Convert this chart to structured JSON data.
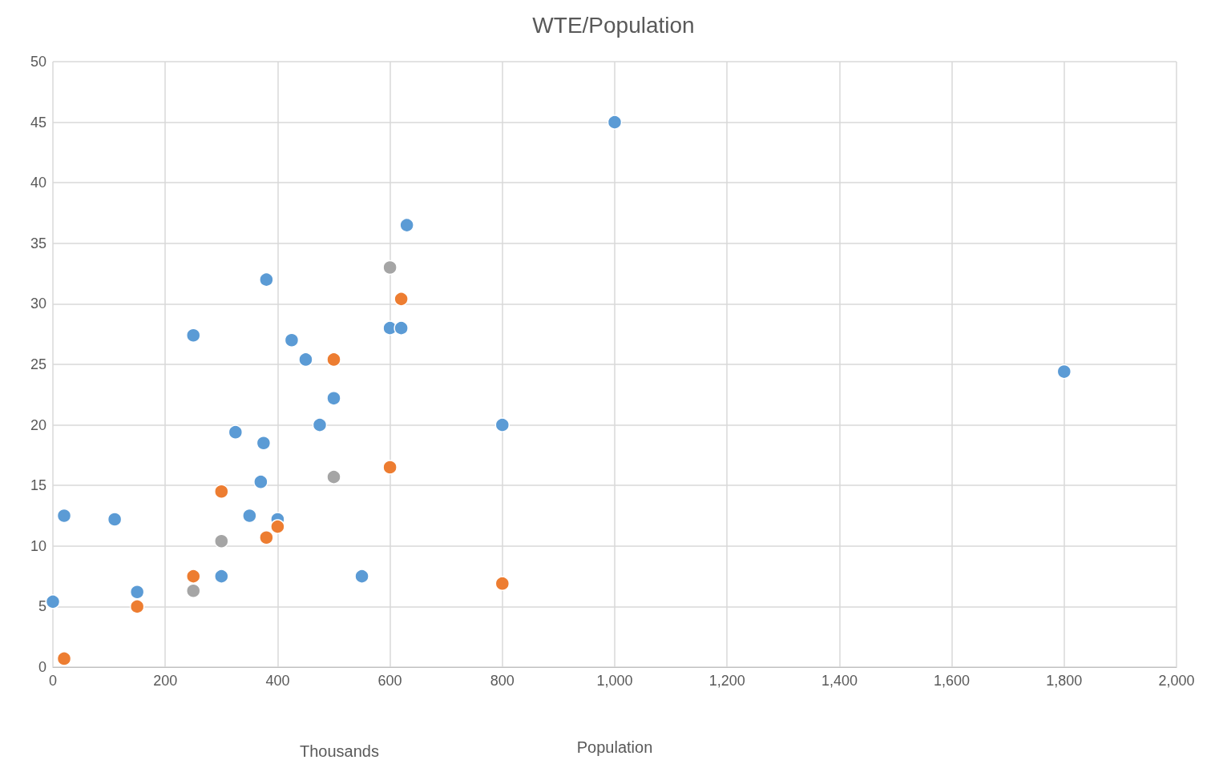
{
  "chart_data": {
    "type": "scatter",
    "title": "WTE/Population",
    "xlabel": "Population",
    "annotations": [
      "Thousands"
    ],
    "xlim": [
      0,
      2000
    ],
    "xticks": [
      0,
      200,
      400,
      600,
      800,
      {
        "value": 1000,
        "label": "1,000"
      },
      {
        "value": 1200,
        "label": "1,200"
      },
      {
        "value": 1400,
        "label": "1,400"
      },
      {
        "value": 1600,
        "label": "1,600"
      },
      {
        "value": 1800,
        "label": "1,800"
      },
      {
        "value": 2000,
        "label": "2,000"
      }
    ],
    "ylim": [
      0,
      50
    ],
    "yticks": [
      0,
      5,
      10,
      15,
      20,
      25,
      30,
      35,
      40,
      45,
      50
    ],
    "grid": true,
    "marker": "circle",
    "series": [
      {
        "color": "#5b9bd5",
        "x": [
          0,
          20,
          110,
          150,
          250,
          300,
          325,
          350,
          370,
          375,
          380,
          400,
          425,
          450,
          475,
          500,
          550,
          600,
          620,
          630,
          800,
          1000,
          1800
        ],
        "values": [
          5.4,
          12.5,
          12.2,
          6.2,
          27.4,
          7.5,
          19.4,
          12.5,
          15.3,
          18.5,
          32,
          12.2,
          27,
          25.4,
          20,
          22.2,
          7.5,
          28,
          28,
          36.5,
          20,
          45,
          24.4
        ]
      },
      {
        "color": "#ed7d31",
        "x": [
          20,
          150,
          250,
          300,
          380,
          400,
          500,
          600,
          620,
          800
        ],
        "values": [
          0.7,
          5,
          7.5,
          14.5,
          10.7,
          11.6,
          25.4,
          16.5,
          30.4,
          6.9
        ]
      },
      {
        "color": "#a5a5a5",
        "x": [
          250,
          300,
          500,
          600
        ],
        "values": [
          6.3,
          10.4,
          15.7,
          33
        ]
      }
    ]
  }
}
